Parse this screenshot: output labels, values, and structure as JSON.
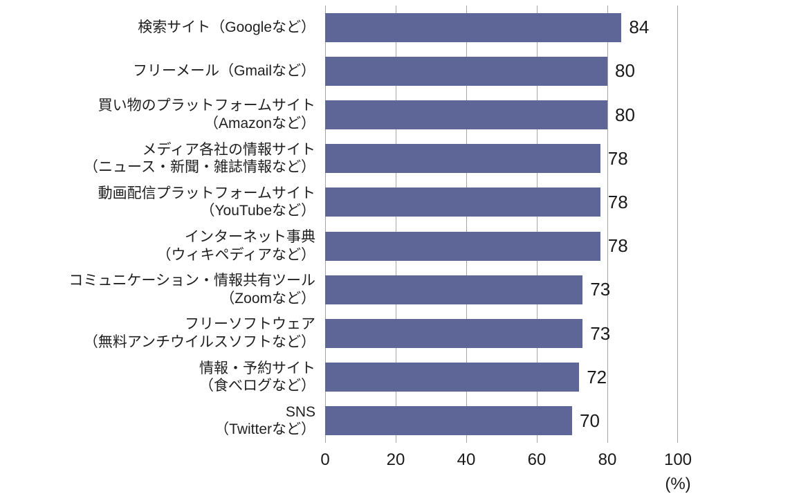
{
  "chart_data": {
    "type": "bar",
    "orientation": "horizontal",
    "title": "",
    "xlabel": "(%)",
    "xlim": [
      0,
      100
    ],
    "xticks": [
      "0",
      "20",
      "40",
      "60",
      "80",
      "100"
    ],
    "unit_label": "(%)",
    "grid": "vertical gridlines at each x tick",
    "legend": "none",
    "bar_color": "#5e6697",
    "gridline_color": "#a6a6a6",
    "text_color": "#1a1a1a",
    "categories": [
      {
        "line1": "検索サイト（Googleなど）"
      },
      {
        "line1": "フリーメール（Gmailなど）"
      },
      {
        "line1": "買い物のプラットフォームサイト",
        "line2": "（Amazonなど）"
      },
      {
        "line1": "メディア各社の情報サイト",
        "line2": "（ニュース・新聞・雑誌情報など）"
      },
      {
        "line1": "動画配信プラットフォームサイト",
        "line2": "（YouTubeなど）"
      },
      {
        "line1": "インターネット事典",
        "line2": "（ウィキペディアなど）"
      },
      {
        "line1": "コミュニケーション・情報共有ツール",
        "line2": "（Zoomなど）"
      },
      {
        "line1": "フリーソフトウェア",
        "line2": "（無料アンチウイルスソフトなど）"
      },
      {
        "line1": "情報・予約サイト",
        "line2": "（食べログなど）"
      },
      {
        "line1": "SNS",
        "line2": "（Twitterなど）"
      }
    ],
    "values": [
      84,
      80,
      80,
      78,
      78,
      78,
      73,
      73,
      72,
      70
    ]
  }
}
